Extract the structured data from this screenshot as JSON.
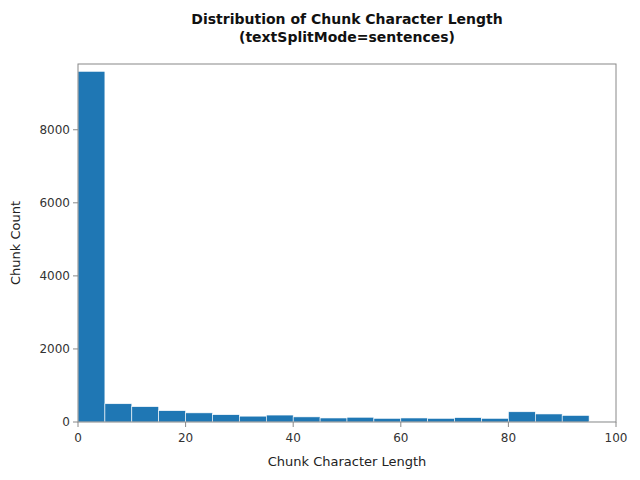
{
  "chart_data": {
    "type": "histogram",
    "title": "Distribution of Chunk Character Length\n(textSplitMode=sentences)",
    "xlabel": "Chunk Character Length",
    "ylabel": "Chunk Count",
    "bins": [
      0,
      5,
      10,
      15,
      20,
      25,
      30,
      35,
      40,
      45,
      50,
      55,
      60,
      65,
      70,
      75,
      80,
      85,
      90,
      95,
      100
    ],
    "values": [
      9600,
      500,
      420,
      310,
      250,
      200,
      160,
      190,
      140,
      110,
      130,
      100,
      110,
      100,
      120,
      100,
      280,
      220,
      180,
      10
    ],
    "color": "#1f77b4",
    "xlim": [
      0,
      100
    ],
    "ylim": [
      0,
      9800
    ],
    "xticks": [
      0,
      20,
      40,
      60,
      80,
      100
    ],
    "yticks": [
      0,
      2000,
      4000,
      6000,
      8000
    ],
    "grid": false
  }
}
